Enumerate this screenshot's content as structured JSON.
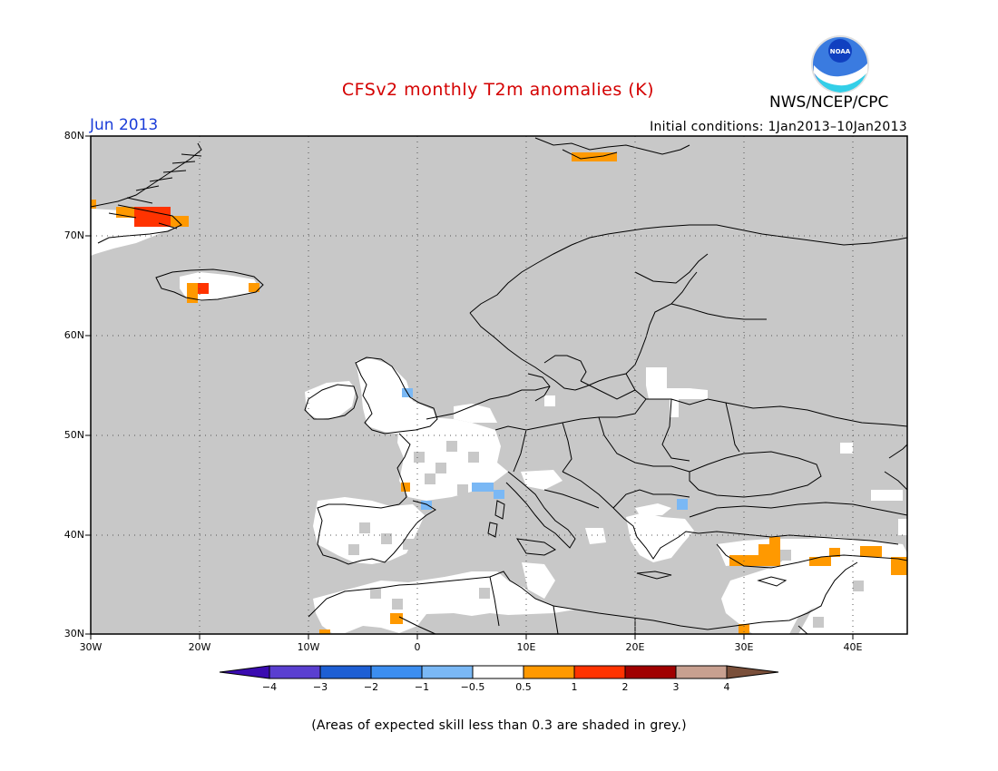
{
  "header": {
    "title": "CFSv2 monthly T2m anomalies (K)",
    "month": "Jun 2013",
    "initial_conditions": "Initial conditions: 1Jan2013–10Jan2013",
    "agency": "NWS/NCEP/CPC",
    "logo_icon": "noaa-logo-icon",
    "logo_text": "NOAA"
  },
  "map": {
    "lat_labels": [
      "80N",
      "70N",
      "60N",
      "50N",
      "40N",
      "30N"
    ],
    "lon_labels": [
      "30W",
      "20W",
      "10W",
      "0",
      "10E",
      "20E",
      "30E",
      "40E"
    ],
    "extent": {
      "lon": [
        -30,
        45
      ],
      "lat": [
        30,
        80
      ]
    },
    "grid": "dotted",
    "skill_mask_color": "#c8c8c8",
    "land_outline_color": "#000000"
  },
  "colorbar": {
    "tick_labels": [
      "−4",
      "−3",
      "−2",
      "−1",
      "−0.5",
      "0.5",
      "1",
      "2",
      "3",
      "4"
    ],
    "colors": [
      "#3a0bb0",
      "#5a3fd0",
      "#1e5fd4",
      "#3c8ef0",
      "#7ab8f5",
      "#ffffff",
      "#ff9900",
      "#ff3300",
      "#a00000",
      "#c8a090",
      "#7a4f3a"
    ]
  },
  "footnote": "(Areas of expected skill less than 0.3 are shaded in grey.)"
}
